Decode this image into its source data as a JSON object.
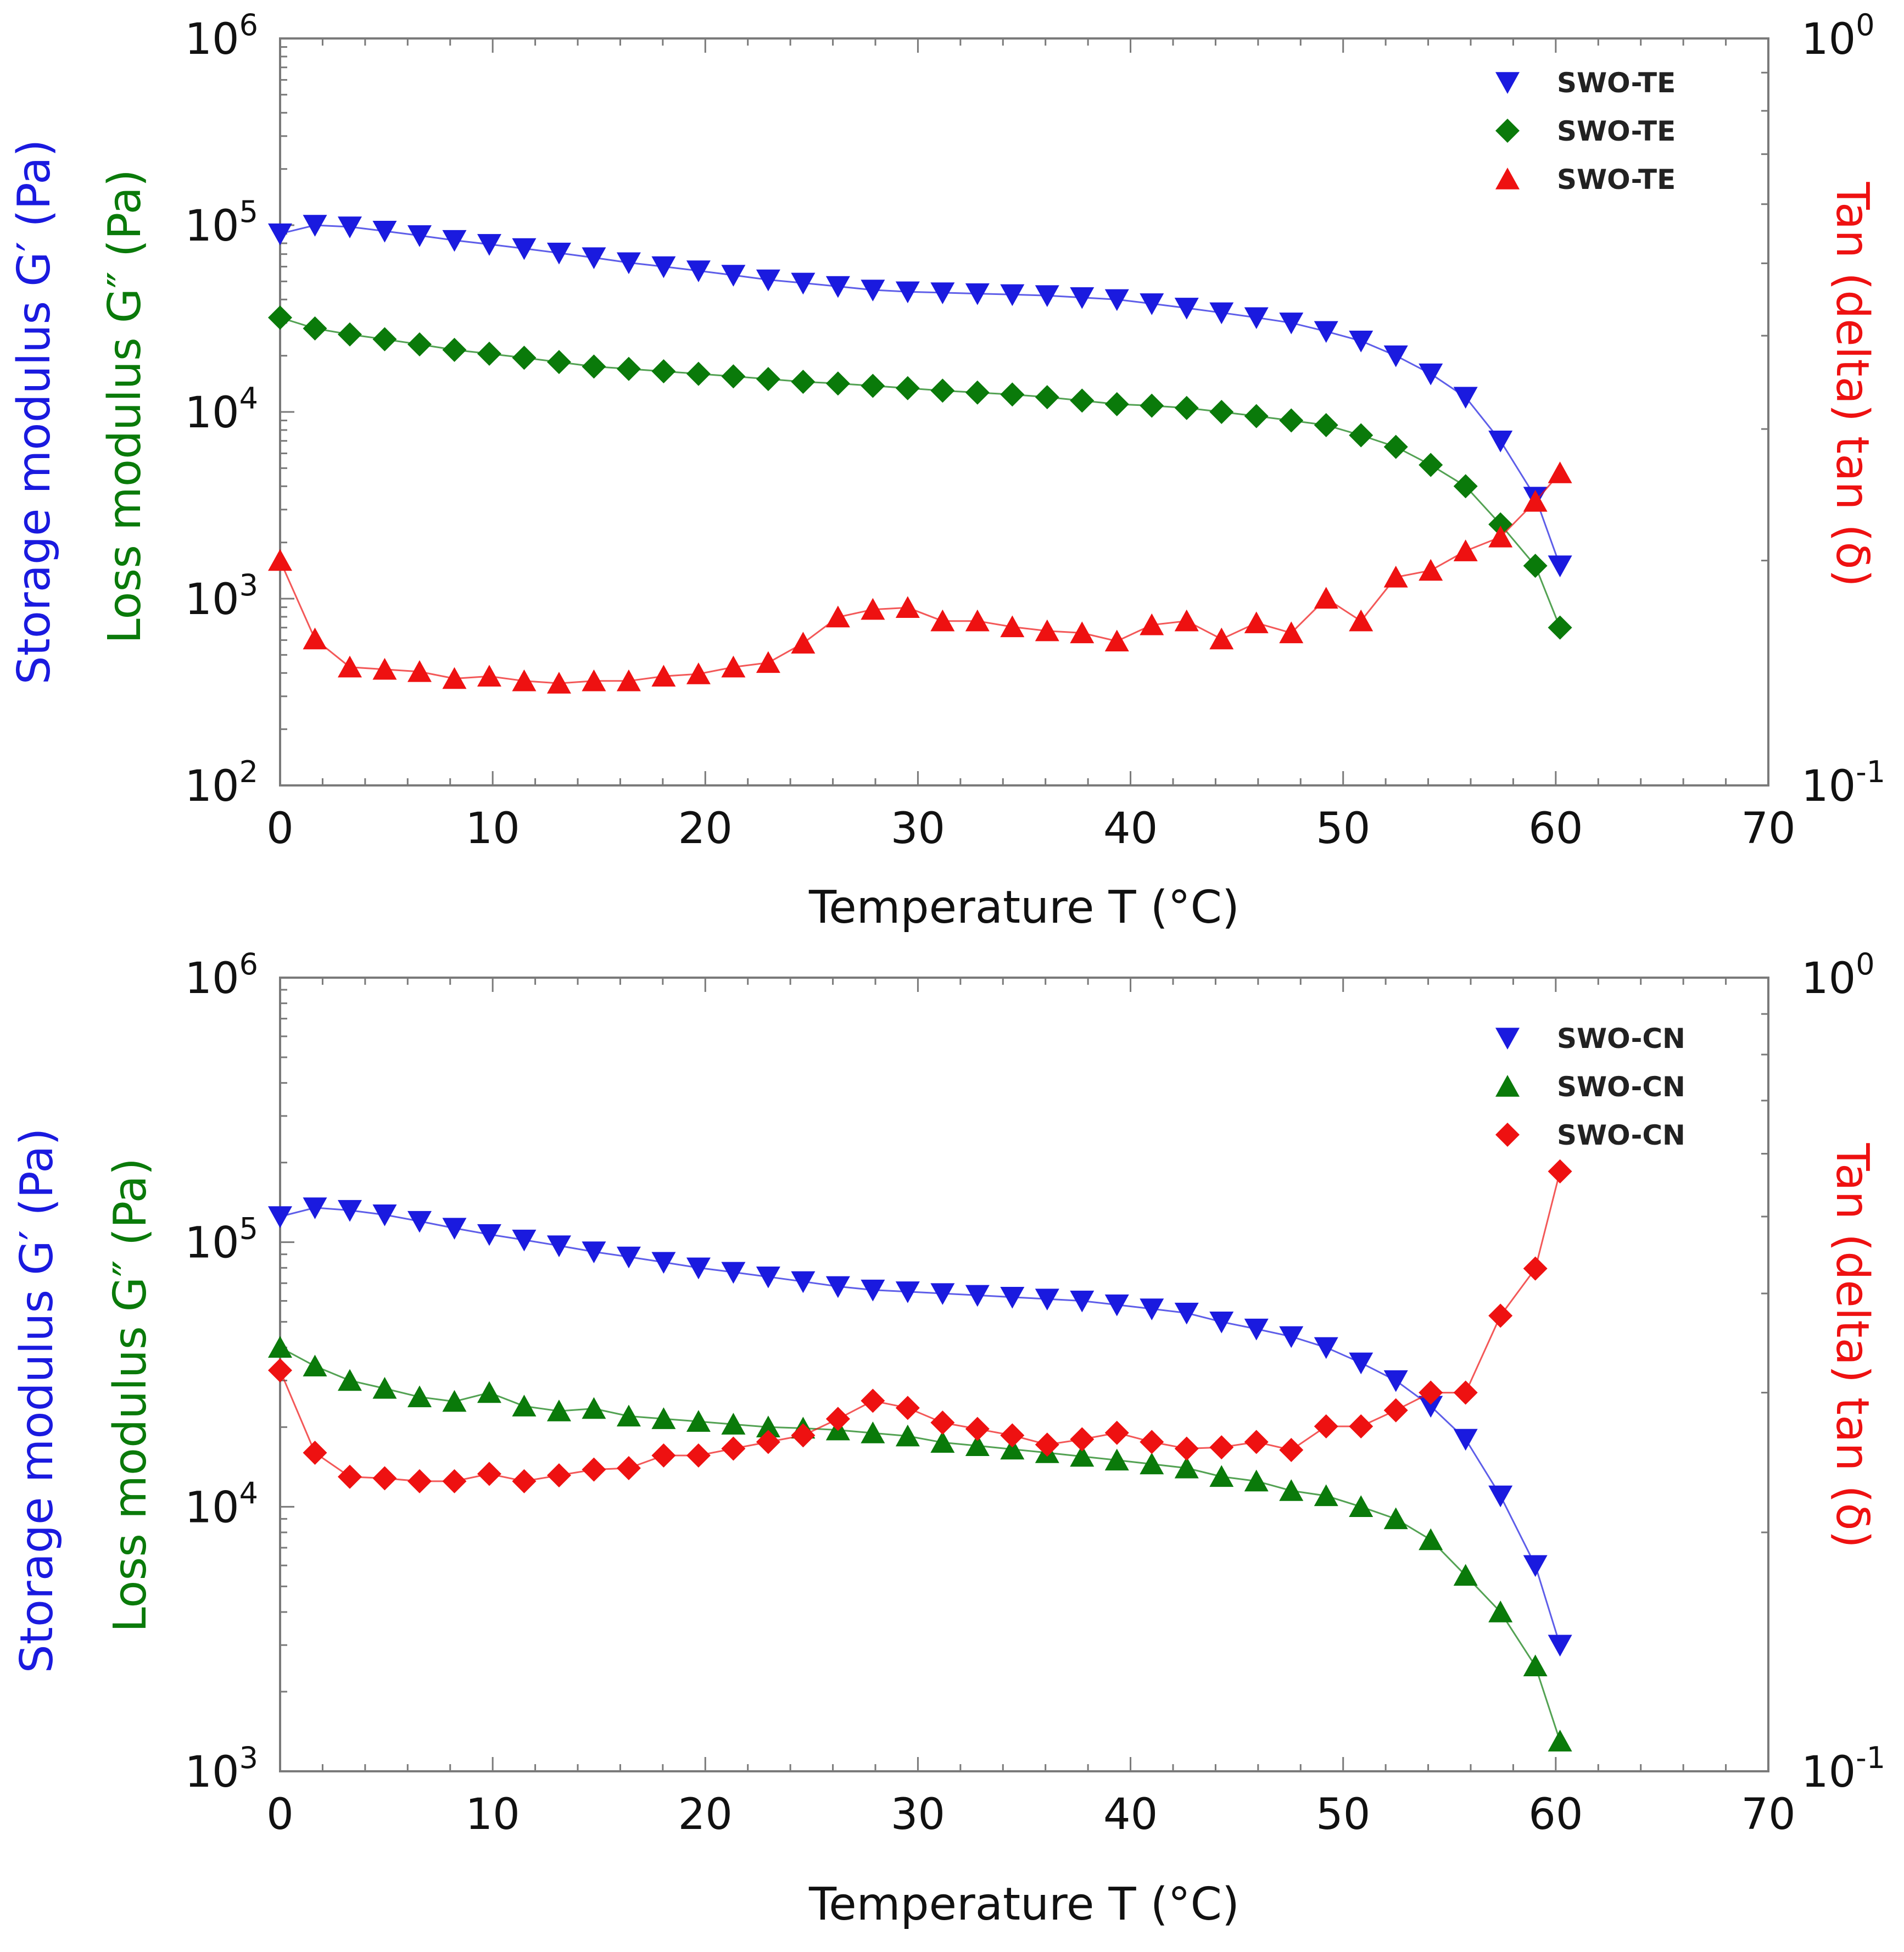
{
  "colors": {
    "storage": "#1a1adf",
    "loss": "#0a7a0a",
    "tan": "#ee1111",
    "axis": "#7a7a7a"
  },
  "chart_data": [
    {
      "type": "scatter",
      "panel": "top",
      "xlabel": "Temperature T (°C)",
      "ylabel_left_primary": "Storage modulus G′ (Pa)",
      "ylabel_left_secondary": "Loss modulus G″ (Pa)",
      "ylabel_right": "Tan (delta) tan (δ)",
      "xlim": [
        0,
        70
      ],
      "ylim_left_decades": [
        2,
        6
      ],
      "ylim_right_decades": [
        -1,
        0
      ],
      "x_ticks": [
        "0",
        "10",
        "20",
        "30",
        "40",
        "50",
        "60",
        "70"
      ],
      "y_left_ticks": [
        {
          "base": "10",
          "exp": "2",
          "decade": 2
        },
        {
          "base": "10",
          "exp": "3",
          "decade": 3
        },
        {
          "base": "10",
          "exp": "4",
          "decade": 4
        },
        {
          "base": "10",
          "exp": "5",
          "decade": 5
        },
        {
          "base": "10",
          "exp": "6",
          "decade": 6
        }
      ],
      "y_right_ticks": [
        {
          "base": "10",
          "exp": "-1",
          "decade": -1
        },
        {
          "base": "10",
          "exp": "0",
          "decade": 0
        }
      ],
      "legend": [
        {
          "label": "SWO-TE",
          "marker": "triangle-down",
          "series": "storage"
        },
        {
          "label": "SWO-TE",
          "marker": "diamond",
          "series": "loss"
        },
        {
          "label": "SWO-TE",
          "marker": "triangle-up",
          "series": "tan"
        }
      ],
      "series": [
        {
          "name": "G′ SWO-TE",
          "key": "storage",
          "axis": "left",
          "marker": "triangle-down",
          "x": [
            0,
            1.64,
            3.28,
            4.92,
            6.56,
            8.2,
            9.84,
            11.48,
            13.12,
            14.76,
            16.4,
            18.04,
            19.68,
            21.32,
            22.96,
            24.6,
            26.24,
            27.88,
            29.52,
            31.16,
            32.8,
            34.44,
            36.08,
            37.72,
            39.36,
            41,
            42.64,
            44.28,
            45.92,
            47.56,
            49.2,
            50.84,
            52.48,
            54.12,
            55.76,
            57.4,
            59.04,
            60.2
          ],
          "y": [
            90000,
            100000,
            98000,
            93000,
            88000,
            83000,
            79000,
            75000,
            71000,
            67000,
            63000,
            60000,
            57000,
            54000,
            51000,
            49000,
            47000,
            45000,
            44000,
            43500,
            43000,
            42500,
            42000,
            41000,
            40000,
            38000,
            36000,
            34000,
            32000,
            30000,
            27000,
            24000,
            20000,
            16000,
            12000,
            7000,
            3500,
            1500
          ]
        },
        {
          "name": "G″ SWO-TE",
          "key": "loss",
          "axis": "left",
          "marker": "diamond",
          "x": [
            0,
            1.64,
            3.28,
            4.92,
            6.56,
            8.2,
            9.84,
            11.48,
            13.12,
            14.76,
            16.4,
            18.04,
            19.68,
            21.32,
            22.96,
            24.6,
            26.24,
            27.88,
            29.52,
            31.16,
            32.8,
            34.44,
            36.08,
            37.72,
            39.36,
            41,
            42.64,
            44.28,
            45.92,
            47.56,
            49.2,
            50.84,
            52.48,
            54.12,
            55.76,
            57.4,
            59.04,
            60.2
          ],
          "y": [
            32000,
            28000,
            26000,
            24500,
            23000,
            21500,
            20500,
            19500,
            18500,
            17500,
            17000,
            16500,
            16000,
            15500,
            15000,
            14500,
            14200,
            13800,
            13400,
            13000,
            12700,
            12400,
            12000,
            11500,
            11000,
            10800,
            10500,
            10000,
            9500,
            9000,
            8500,
            7500,
            6500,
            5200,
            4000,
            2500,
            1500,
            700
          ]
        },
        {
          "name": "tan δ SWO-TE",
          "key": "tan",
          "axis": "right",
          "marker": "triangle-up",
          "x": [
            0,
            1.64,
            3.28,
            4.92,
            6.56,
            8.2,
            9.84,
            11.48,
            13.12,
            14.76,
            16.4,
            18.04,
            19.68,
            21.32,
            22.96,
            24.6,
            26.24,
            27.88,
            29.52,
            31.16,
            32.8,
            34.44,
            36.08,
            37.72,
            39.36,
            41,
            42.64,
            44.28,
            45.92,
            47.56,
            49.2,
            50.84,
            52.48,
            54.12,
            55.76,
            57.4,
            59.04,
            60.2
          ],
          "y": [
            0.2,
            0.157,
            0.144,
            0.143,
            0.142,
            0.139,
            0.14,
            0.138,
            0.137,
            0.138,
            0.138,
            0.14,
            0.141,
            0.144,
            0.146,
            0.155,
            0.168,
            0.172,
            0.173,
            0.166,
            0.166,
            0.163,
            0.161,
            0.16,
            0.156,
            0.164,
            0.166,
            0.157,
            0.165,
            0.16,
            0.178,
            0.166,
            0.19,
            0.194,
            0.206,
            0.215,
            0.24,
            0.262
          ]
        }
      ]
    },
    {
      "type": "scatter",
      "panel": "bottom",
      "xlabel": "Temperature T (°C)",
      "ylabel_left_primary": "Storage modulus G′ (Pa)",
      "ylabel_left_secondary": "Loss modulus G″ (Pa)",
      "ylabel_right": "Tan (delta) tan (δ)",
      "xlim": [
        0,
        70
      ],
      "ylim_left_decades": [
        3,
        6
      ],
      "ylim_right_decades": [
        -1,
        0
      ],
      "x_ticks": [
        "0",
        "10",
        "20",
        "30",
        "40",
        "50",
        "60",
        "70"
      ],
      "y_left_ticks": [
        {
          "base": "10",
          "exp": "3",
          "decade": 3
        },
        {
          "base": "10",
          "exp": "4",
          "decade": 4
        },
        {
          "base": "10",
          "exp": "5",
          "decade": 5
        },
        {
          "base": "10",
          "exp": "6",
          "decade": 6
        }
      ],
      "y_right_ticks": [
        {
          "base": "10",
          "exp": "-1",
          "decade": -1
        },
        {
          "base": "10",
          "exp": "0",
          "decade": 0
        }
      ],
      "legend": [
        {
          "label": "SWO-CN",
          "marker": "triangle-down",
          "series": "storage"
        },
        {
          "label": "SWO-CN",
          "marker": "triangle-up",
          "series": "loss"
        },
        {
          "label": "SWO-CN",
          "marker": "diamond",
          "series": "tan"
        }
      ],
      "series": [
        {
          "name": "G′ SWO-CN",
          "key": "storage",
          "axis": "left",
          "marker": "triangle-down",
          "x": [
            0,
            1.64,
            3.28,
            4.92,
            6.56,
            8.2,
            9.84,
            11.48,
            13.12,
            14.76,
            16.4,
            18.04,
            19.68,
            21.32,
            22.96,
            24.6,
            26.24,
            27.88,
            29.52,
            31.16,
            32.8,
            34.44,
            36.08,
            37.72,
            39.36,
            41,
            42.64,
            44.28,
            45.92,
            47.56,
            49.2,
            50.84,
            52.48,
            54.12,
            55.76,
            57.4,
            59.04,
            60.2
          ],
          "y": [
            125000,
            135000,
            132000,
            127000,
            120000,
            113000,
            107000,
            102000,
            97000,
            92000,
            88000,
            84000,
            80000,
            77000,
            74000,
            71000,
            68000,
            66000,
            65000,
            64000,
            63000,
            62000,
            61000,
            60000,
            58000,
            56000,
            54000,
            50000,
            47000,
            44000,
            40000,
            35000,
            30000,
            24000,
            18000,
            11000,
            6000,
            3000
          ]
        },
        {
          "name": "G″ SWO-CN",
          "key": "loss",
          "axis": "left",
          "marker": "triangle-up",
          "x": [
            0,
            1.64,
            3.28,
            4.92,
            6.56,
            8.2,
            9.84,
            11.48,
            13.12,
            14.76,
            16.4,
            18.04,
            19.68,
            21.32,
            22.96,
            24.6,
            26.24,
            27.88,
            29.52,
            31.16,
            32.8,
            34.44,
            36.08,
            37.72,
            39.36,
            41,
            42.64,
            44.28,
            45.92,
            47.56,
            49.2,
            50.84,
            52.48,
            54.12,
            55.76,
            57.4,
            59.04,
            60.2
          ],
          "y": [
            40000,
            34000,
            30000,
            28000,
            26000,
            25000,
            27000,
            24000,
            23000,
            23500,
            22000,
            21500,
            21000,
            20500,
            20000,
            19800,
            19500,
            19000,
            18500,
            17500,
            17000,
            16500,
            16000,
            15500,
            15000,
            14500,
            14000,
            13000,
            12500,
            11500,
            11000,
            10000,
            9000,
            7500,
            5500,
            4000,
            2500,
            1300
          ]
        },
        {
          "name": "tan δ SWO-CN",
          "key": "tan",
          "axis": "right",
          "marker": "diamond",
          "x": [
            0,
            1.64,
            3.28,
            4.92,
            6.56,
            8.2,
            9.84,
            11.48,
            13.12,
            14.76,
            16.4,
            18.04,
            19.68,
            21.32,
            22.96,
            24.6,
            26.24,
            27.88,
            29.52,
            31.16,
            32.8,
            34.44,
            36.08,
            37.72,
            39.36,
            41,
            42.64,
            44.28,
            45.92,
            47.56,
            49.2,
            50.84,
            52.48,
            54.12,
            55.76,
            57.4,
            59.04,
            60.2
          ],
          "y": [
            0.32,
            0.252,
            0.235,
            0.234,
            0.232,
            0.232,
            0.237,
            0.232,
            0.236,
            0.24,
            0.241,
            0.25,
            0.25,
            0.255,
            0.26,
            0.265,
            0.278,
            0.293,
            0.287,
            0.275,
            0.27,
            0.265,
            0.258,
            0.262,
            0.267,
            0.26,
            0.255,
            0.256,
            0.26,
            0.254,
            0.272,
            0.272,
            0.285,
            0.3,
            0.3,
            0.375,
            0.43,
            0.57
          ]
        }
      ]
    }
  ]
}
